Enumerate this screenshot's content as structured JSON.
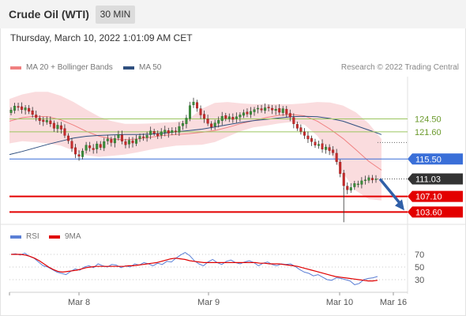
{
  "header": {
    "title": "Crude Oil (WTI)",
    "timeframe": "30 MIN",
    "datetime": "Thursday, March 10, 2022 1:01:09 AM CET"
  },
  "legend": {
    "ma20_label": "MA 20 + Bollinger Bands",
    "ma20_color": "#f08080",
    "ma50_label": "MA 50",
    "ma50_color": "#2f4f7f",
    "credit": "Research © 2022 Trading Central"
  },
  "rsi_legend": {
    "rsi_label": "RSI",
    "rsi_color": "#5b7fd6",
    "ma9_label": "9MA",
    "ma9_color": "#e00000"
  },
  "chart_data": [
    {
      "type": "candlestick",
      "title": "Crude Oil (WTI)",
      "timeframe": "30 MIN",
      "x_ticks": [
        "Mar 8",
        "Mar 9",
        "Mar 10",
        "Mar 16"
      ],
      "ylim": [
        101,
        134
      ],
      "levels": [
        {
          "value": 124.5,
          "label": "124.50",
          "style": "green-line",
          "color": "#9bc55f"
        },
        {
          "value": 121.6,
          "label": "121.60",
          "style": "green-line",
          "color": "#9bc55f"
        },
        {
          "value": 115.5,
          "label": "115.50",
          "style": "blue-line",
          "color": "#3a6fd8"
        },
        {
          "value": 111.03,
          "label": "111.03",
          "style": "current-price",
          "color": "#333333"
        },
        {
          "value": 107.1,
          "label": "107.10",
          "style": "red-line",
          "color": "#e30000"
        },
        {
          "value": 103.6,
          "label": "103.60",
          "style": "red-line",
          "color": "#e30000"
        }
      ],
      "close_path": [
        126.5,
        127.4,
        127.1,
        126.6,
        127.0,
        126.2,
        125.5,
        124.8,
        124.1,
        123.9,
        124.2,
        123.4,
        122.4,
        123.1,
        122.2,
        120.8,
        119.6,
        117.9,
        116.6,
        116.1,
        117.3,
        118.6,
        118.0,
        117.6,
        118.9,
        118.1,
        119.4,
        120.0,
        119.2,
        120.1,
        121.0,
        119.5,
        118.7,
        119.7,
        119.1,
        119.9,
        120.6,
        120.4,
        120.8,
        121.8,
        121.3,
        120.7,
        121.6,
        122.0,
        121.3,
        121.9,
        121.6,
        122.8,
        123.5,
        124.7,
        127.5,
        128.3,
        126.9,
        125.4,
        124.6,
        123.5,
        122.7,
        123.6,
        124.2,
        125.1,
        124.6,
        125.0,
        124.4,
        125.0,
        125.4,
        125.9,
        125.6,
        126.2,
        126.6,
        126.9,
        126.5,
        127.0,
        127.0,
        126.5,
        126.7,
        126.0,
        126.8,
        125.6,
        124.9,
        123.4,
        122.4,
        121.7,
        120.8,
        120.0,
        119.4,
        118.6,
        118.8,
        117.7,
        118.2,
        117.4,
        116.9,
        114.9,
        112.2,
        109.5,
        108.6,
        109.1,
        110.0,
        109.9,
        110.6,
        110.8,
        111.3,
        110.8,
        111.03
      ],
      "ma20_band": {
        "mid": [
          124.0,
          124.8,
          125.1,
          125.0,
          124.3,
          123.1,
          121.7,
          120.6,
          120.0,
          119.8,
          120.0,
          120.4,
          120.8,
          121.0,
          121.2,
          121.5,
          121.9,
          122.6,
          123.4,
          124.1,
          124.8,
          125.3,
          125.5,
          125.2,
          124.0,
          122.2,
          120.1,
          117.6,
          115.0,
          113.0
        ],
        "upper": [
          129.0,
          130.0,
          130.6,
          130.6,
          129.7,
          128.3,
          126.6,
          125.0,
          124.0,
          123.4,
          123.4,
          123.5,
          123.7,
          123.8,
          124.5,
          126.8,
          128.1,
          128.3,
          128.0,
          127.8,
          127.8,
          127.8,
          127.8,
          128.0,
          128.3,
          128.2,
          127.5,
          126.0,
          123.5,
          120.0
        ],
        "lower": [
          119.0,
          119.5,
          119.3,
          119.0,
          118.5,
          117.4,
          116.3,
          116.0,
          116.2,
          116.5,
          117.0,
          117.6,
          118.1,
          118.5,
          118.6,
          118.7,
          119.3,
          120.5,
          121.7,
          122.6,
          123.0,
          123.5,
          123.8,
          123.2,
          120.7,
          116.8,
          112.3,
          108.4,
          106.5,
          106.2
        ]
      },
      "ma50": [
        116.5,
        117.2,
        118.0,
        118.8,
        119.5,
        120.2,
        120.6,
        120.8,
        120.9,
        121.0,
        121.0,
        121.1,
        121.3,
        121.6,
        121.9,
        122.2,
        122.7,
        123.2,
        123.7,
        124.1,
        124.4,
        124.7,
        125.0,
        125.1,
        125.0,
        124.6,
        124.0,
        123.0,
        122.0,
        121.0
      ],
      "forecast_arrow": {
        "from": 111.03,
        "to": 103.6
      }
    },
    {
      "type": "line",
      "title": "RSI",
      "yticks": [
        70,
        50,
        30
      ],
      "ylim": [
        10,
        85
      ],
      "series": [
        {
          "name": "RSI",
          "color": "#5b7fd6",
          "values": [
            70,
            71,
            69,
            72,
            67,
            64,
            58,
            52,
            50,
            46,
            42,
            40,
            38,
            43,
            47,
            45,
            50,
            52,
            49,
            55,
            52,
            50,
            54,
            53,
            49,
            52,
            50,
            55,
            53,
            57,
            55,
            52,
            56,
            54,
            59,
            58,
            64,
            69,
            73,
            68,
            60,
            55,
            52,
            58,
            62,
            57,
            54,
            59,
            61,
            57,
            55,
            58,
            60,
            57,
            52,
            56,
            58,
            54,
            52,
            55,
            54,
            55,
            51,
            46,
            42,
            40,
            36,
            38,
            34,
            30,
            29,
            33,
            32,
            30,
            28,
            22,
            24,
            30,
            32,
            33,
            35
          ]
        },
        {
          "name": "9MA",
          "color": "#e00000",
          "values": [
            70,
            70,
            70,
            69,
            67,
            64,
            60,
            55,
            50,
            46,
            43,
            42,
            43,
            44,
            45,
            47,
            49,
            50,
            51,
            51,
            51,
            51,
            51,
            51,
            51,
            52,
            52,
            53,
            54,
            55,
            56,
            57,
            59,
            61,
            63,
            64,
            63,
            62,
            60,
            59,
            58,
            57,
            57,
            57,
            57,
            57,
            57,
            57,
            57,
            57,
            57,
            57,
            57,
            56,
            56,
            55,
            55,
            55,
            54,
            53,
            52,
            51,
            49,
            47,
            45,
            43,
            41,
            39,
            37,
            35,
            34,
            33,
            32,
            31,
            30,
            29,
            28,
            28,
            29
          ]
        }
      ]
    }
  ]
}
